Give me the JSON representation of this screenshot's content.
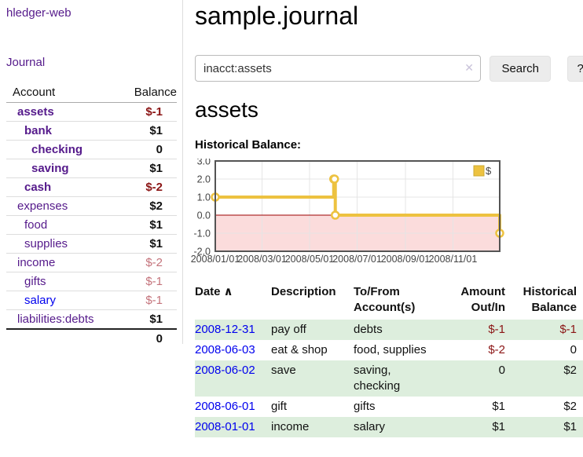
{
  "colors": {
    "link_blue": "#0000ee",
    "link_purple": "#551a8b",
    "negative_strong": "#8b1515",
    "negative_soft": "#c4737b",
    "row_stripe_green": "#ddeedd",
    "chart_gold": "#edc240",
    "chart_negative_fill": "#fbdcdc",
    "chart_zero_line": "#9e0000"
  },
  "sidebar": {
    "brand": "hledger-web",
    "nav_journal": "Journal",
    "col_account": "Account",
    "col_balance": "Balance",
    "accounts": [
      {
        "name": "assets",
        "indent": 1,
        "bold": true,
        "link_variant": "purple",
        "balance": "$-1",
        "balance_style": "neg-strong"
      },
      {
        "name": "bank",
        "indent": 2,
        "bold": true,
        "link_variant": "purple",
        "balance": "$1",
        "balance_style": ""
      },
      {
        "name": "checking",
        "indent": 3,
        "bold": true,
        "link_variant": "purple",
        "balance": "0",
        "balance_style": ""
      },
      {
        "name": "saving",
        "indent": 3,
        "bold": true,
        "link_variant": "purple",
        "balance": "$1",
        "balance_style": ""
      },
      {
        "name": "cash",
        "indent": 2,
        "bold": true,
        "link_variant": "purple",
        "balance": "$-2",
        "balance_style": "neg-strong"
      },
      {
        "name": "expenses",
        "indent": 1,
        "bold": false,
        "link_variant": "purple",
        "balance": "$2",
        "balance_style": ""
      },
      {
        "name": "food",
        "indent": 2,
        "bold": false,
        "link_variant": "purple",
        "balance": "$1",
        "balance_style": ""
      },
      {
        "name": "supplies",
        "indent": 2,
        "bold": false,
        "link_variant": "purple",
        "balance": "$1",
        "balance_style": ""
      },
      {
        "name": "income",
        "indent": 1,
        "bold": false,
        "link_variant": "purple",
        "balance": "$-2",
        "balance_style": "neg-soft"
      },
      {
        "name": "gifts",
        "indent": 2,
        "bold": false,
        "link_variant": "purple",
        "balance": "$-1",
        "balance_style": "neg-soft"
      },
      {
        "name": "salary",
        "indent": 2,
        "bold": false,
        "link_variant": "blue",
        "balance": "$-1",
        "balance_style": "neg-soft"
      },
      {
        "name": "liabilities:debts",
        "indent": 1,
        "bold": false,
        "link_variant": "purple",
        "balance": "$1",
        "balance_style": ""
      }
    ],
    "total": "0"
  },
  "header": {
    "title": "sample.journal"
  },
  "search": {
    "value": "inacct:assets",
    "clear_icon": "✕",
    "search_button": "Search",
    "help_button": "?"
  },
  "account_view": {
    "heading": "assets",
    "chart_title": "Historical Balance:"
  },
  "chart_data": {
    "type": "line",
    "step": true,
    "title": "Historical Balance:",
    "xlabel": "",
    "ylabel": "",
    "grid": true,
    "legend_position": "top-right",
    "legend": "$",
    "xlim": [
      "2008-01-01",
      "2008-12-31"
    ],
    "ylim": [
      -2,
      3
    ],
    "yticks": [
      "3.0",
      "2.0",
      "1.0",
      "0.0",
      "-1.0",
      "-2.0"
    ],
    "xticks": [
      "2008/01/01",
      "2008/03/01",
      "2008/05/01",
      "2008/07/01",
      "2008/09/01",
      "2008/11/01"
    ],
    "series": [
      {
        "name": "$",
        "color": "#edc240",
        "points": [
          [
            "2008-01-01",
            1
          ],
          [
            "2008-06-01",
            2
          ],
          [
            "2008-06-02",
            2
          ],
          [
            "2008-06-03",
            0
          ],
          [
            "2008-12-31",
            -1
          ]
        ]
      }
    ]
  },
  "register": {
    "headers": {
      "date": "Date",
      "sort_icon": "∧",
      "description": "Description",
      "accounts": "To/From Account(s)",
      "amount": "Amount Out/In",
      "balance": "Historical Balance"
    },
    "rows": [
      {
        "date": "2008-12-31",
        "description": "pay off",
        "accounts": "debts",
        "amount": "$-1",
        "amount_negative": true,
        "balance": "$-1",
        "balance_negative": true
      },
      {
        "date": "2008-06-03",
        "description": "eat & shop",
        "accounts": "food, supplies",
        "amount": "$-2",
        "amount_negative": true,
        "balance": "0",
        "balance_negative": false
      },
      {
        "date": "2008-06-02",
        "description": "save",
        "accounts": "saving, checking",
        "amount": "0",
        "amount_negative": false,
        "balance": "$2",
        "balance_negative": false
      },
      {
        "date": "2008-06-01",
        "description": "gift",
        "accounts": "gifts",
        "amount": "$1",
        "amount_negative": false,
        "balance": "$2",
        "balance_negative": false
      },
      {
        "date": "2008-01-01",
        "description": "income",
        "accounts": "salary",
        "amount": "$1",
        "amount_negative": false,
        "balance": "$1",
        "balance_negative": false
      }
    ]
  }
}
